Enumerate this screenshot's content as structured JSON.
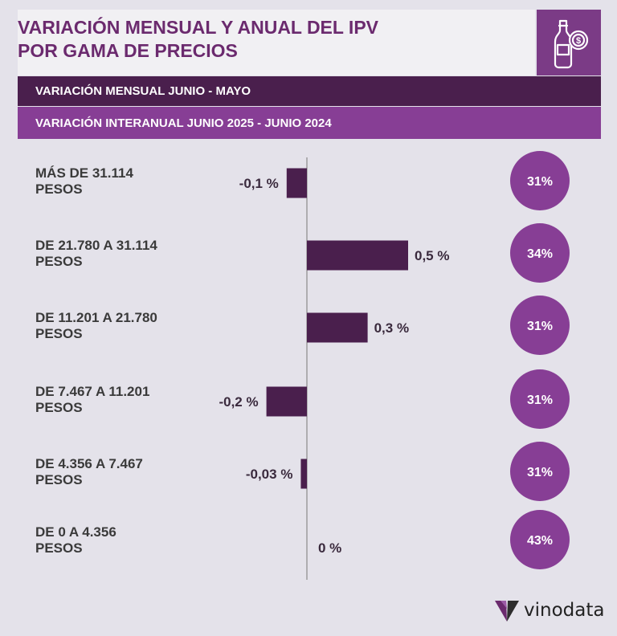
{
  "header": {
    "title_line1": "VARIACIÓN MENSUAL Y ANUAL DEL IPV",
    "title_line2": "POR GAMA DE PRECIOS",
    "icon": "wine-bottle-money-icon"
  },
  "legend": {
    "monthly": "VARIACIÓN MENSUAL JUNIO - MAYO",
    "yearly": "VARIACIÓN INTERANUAL  JUNIO 2025 - JUNIO 2024"
  },
  "brand": {
    "name": "vinodata",
    "icon": "vinodata-logo-icon"
  },
  "colors": {
    "title": "#6b2a6e",
    "bar": "#4a1f4d",
    "circle": "#873e95",
    "header_bg": "#f1f0f3",
    "page_bg": "#e4e2ea"
  },
  "chart_data": {
    "type": "bar",
    "orientation": "horizontal",
    "categories": [
      [
        "MÁS DE 31.114",
        "PESOS"
      ],
      [
        "DE 21.780 A 31.114",
        "PESOS"
      ],
      [
        "DE 11.201 A 21.780",
        "PESOS"
      ],
      [
        "DE 7.467 A 11.201",
        "PESOS"
      ],
      [
        "DE 4.356 A 7.467",
        "PESOS"
      ],
      [
        "DE 0 A 4.356",
        "PESOS"
      ]
    ],
    "series": [
      {
        "name": "VARIACIÓN MENSUAL JUNIO - MAYO",
        "values": [
          -0.1,
          0.5,
          0.3,
          -0.2,
          -0.03,
          0
        ],
        "labels": [
          "-0,1 %",
          "0,5 %",
          "0,3 %",
          "-0,2 %",
          "-0,03 %",
          "0 %"
        ]
      },
      {
        "name": "VARIACIÓN INTERANUAL  JUNIO 2025 - JUNIO 2024",
        "values": [
          31,
          34,
          31,
          31,
          31,
          43
        ],
        "labels": [
          "31%",
          "34%",
          "31%",
          "31%",
          "31%",
          "43%"
        ]
      }
    ]
  }
}
